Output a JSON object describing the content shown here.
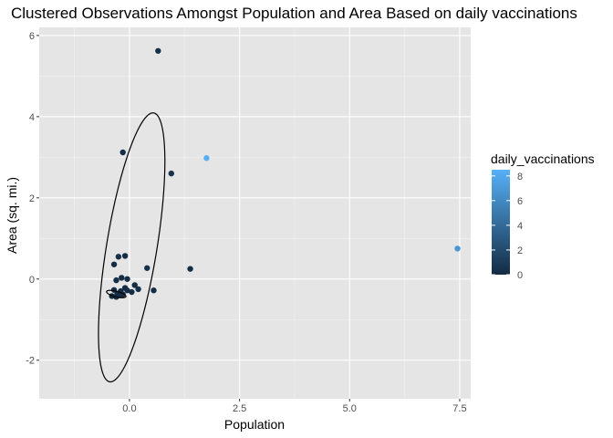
{
  "chart_data": {
    "type": "scatter",
    "title": "Clustered Observations Amongst Population and Area Based on daily vaccinations",
    "xlabel": "Population",
    "ylabel": "Area (sq. mi.)",
    "xlim": [
      -2.05,
      7.75
    ],
    "ylim": [
      -2.95,
      6.2
    ],
    "x_ticks": [
      0.0,
      2.5,
      5.0,
      7.5
    ],
    "x_tick_labels": [
      "0.0",
      "2.5",
      "5.0",
      "7.5"
    ],
    "y_ticks": [
      -2,
      0,
      2,
      4,
      6
    ],
    "y_tick_labels": [
      "-2",
      "0",
      "2",
      "4",
      "6"
    ],
    "grid": true,
    "background": "#e5e5e5",
    "color_scale": {
      "title": "daily_vaccinations",
      "low": "#132b43",
      "high": "#56b1f7",
      "range": [
        0,
        8.5
      ],
      "breaks": [
        0,
        2,
        4,
        6,
        8
      ],
      "break_labels": [
        "0",
        "2",
        "4",
        "6",
        "8"
      ],
      "legend_position": "right"
    },
    "points": [
      {
        "x": 0.65,
        "y": 5.62,
        "c": 0.3
      },
      {
        "x": 1.75,
        "y": 2.98,
        "c": 8.4
      },
      {
        "x": -0.15,
        "y": 3.12,
        "c": 0.2
      },
      {
        "x": 0.95,
        "y": 2.6,
        "c": 0.5
      },
      {
        "x": 7.45,
        "y": 0.75,
        "c": 6.8
      },
      {
        "x": -0.25,
        "y": 0.55,
        "c": 0.3
      },
      {
        "x": -0.1,
        "y": 0.57,
        "c": 0.2
      },
      {
        "x": 0.4,
        "y": 0.27,
        "c": 0.4
      },
      {
        "x": 1.38,
        "y": 0.25,
        "c": 0.2
      },
      {
        "x": -0.35,
        "y": 0.36,
        "c": 0.1
      },
      {
        "x": -0.18,
        "y": 0.03,
        "c": 0.2
      },
      {
        "x": -0.05,
        "y": 0.0,
        "c": 0.1
      },
      {
        "x": -0.3,
        "y": -0.03,
        "c": 0.2
      },
      {
        "x": 0.55,
        "y": -0.28,
        "c": 0.2
      },
      {
        "x": 0.2,
        "y": -0.25,
        "c": 0.3
      },
      {
        "x": 0.12,
        "y": -0.15,
        "c": 0.1
      },
      {
        "x": 0.05,
        "y": -0.32,
        "c": 0.2
      },
      {
        "x": -0.1,
        "y": -0.22,
        "c": 0.1
      },
      {
        "x": -0.2,
        "y": -0.3,
        "c": 0.1
      },
      {
        "x": -0.28,
        "y": -0.38,
        "c": 0.1
      },
      {
        "x": -0.35,
        "y": -0.27,
        "c": 0.2
      },
      {
        "x": -0.15,
        "y": -0.38,
        "c": 0.1
      },
      {
        "x": -0.4,
        "y": -0.42,
        "c": 0.0
      },
      {
        "x": -0.3,
        "y": -0.44,
        "c": 0.1
      },
      {
        "x": -0.22,
        "y": -0.4,
        "c": 0.1
      },
      {
        "x": -0.05,
        "y": -0.28,
        "c": 0.2
      }
    ],
    "ellipses": [
      {
        "cx": 0.05,
        "cy": 0.78,
        "rx": 1.05,
        "ry": 3.45,
        "angle_deg": -17
      },
      {
        "cx": -0.3,
        "cy": -0.37,
        "rx": 0.42,
        "ry": 0.07,
        "angle_deg": -8
      }
    ]
  }
}
